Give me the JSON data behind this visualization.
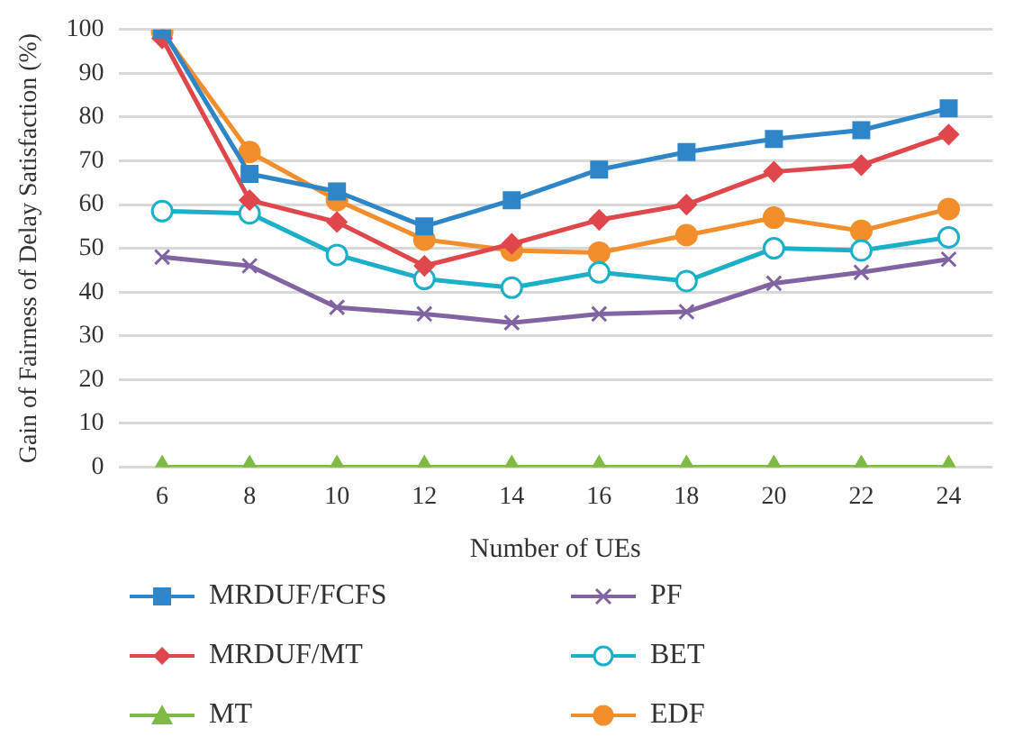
{
  "chart_data": {
    "type": "line",
    "xlabel": "Number of UEs",
    "ylabel": "Gain of Fairness of Delay Satisfaction (%)",
    "categories": [
      "6",
      "8",
      "10",
      "12",
      "14",
      "16",
      "18",
      "20",
      "22",
      "24"
    ],
    "ylim": [
      0,
      100
    ],
    "yticks": [
      0,
      10,
      20,
      30,
      40,
      50,
      60,
      70,
      80,
      90,
      100
    ],
    "grid": "y",
    "legend": "bottom",
    "series": [
      {
        "name": "MRDUF/FCFS",
        "color": "#2e86c8",
        "marker": "square",
        "values": [
          100,
          67,
          63,
          55,
          61,
          68,
          72,
          75,
          77,
          82
        ]
      },
      {
        "name": "MRDUF/MT",
        "color": "#e0474c",
        "marker": "diamond",
        "values": [
          98,
          61,
          56,
          46,
          51,
          56.5,
          60,
          67.5,
          69,
          76
        ]
      },
      {
        "name": "MT",
        "color": "#7fba42",
        "marker": "triangle",
        "values": [
          0,
          0,
          0,
          0,
          0,
          0,
          0,
          0,
          0,
          0
        ]
      },
      {
        "name": "PF",
        "color": "#8064a2",
        "marker": "cross",
        "values": [
          48,
          46,
          36.5,
          35,
          33,
          35,
          35.5,
          42,
          44.5,
          47.5
        ]
      },
      {
        "name": "BET",
        "color": "#1bb0c8",
        "marker": "circle-open",
        "values": [
          58.5,
          58,
          48.5,
          43,
          41,
          44.5,
          42.5,
          50,
          49.5,
          52.5
        ]
      },
      {
        "name": "EDF",
        "color": "#f28e2b",
        "marker": "circle",
        "values": [
          99.5,
          72,
          61,
          52,
          49.5,
          49,
          53,
          57,
          54,
          59
        ]
      }
    ]
  }
}
